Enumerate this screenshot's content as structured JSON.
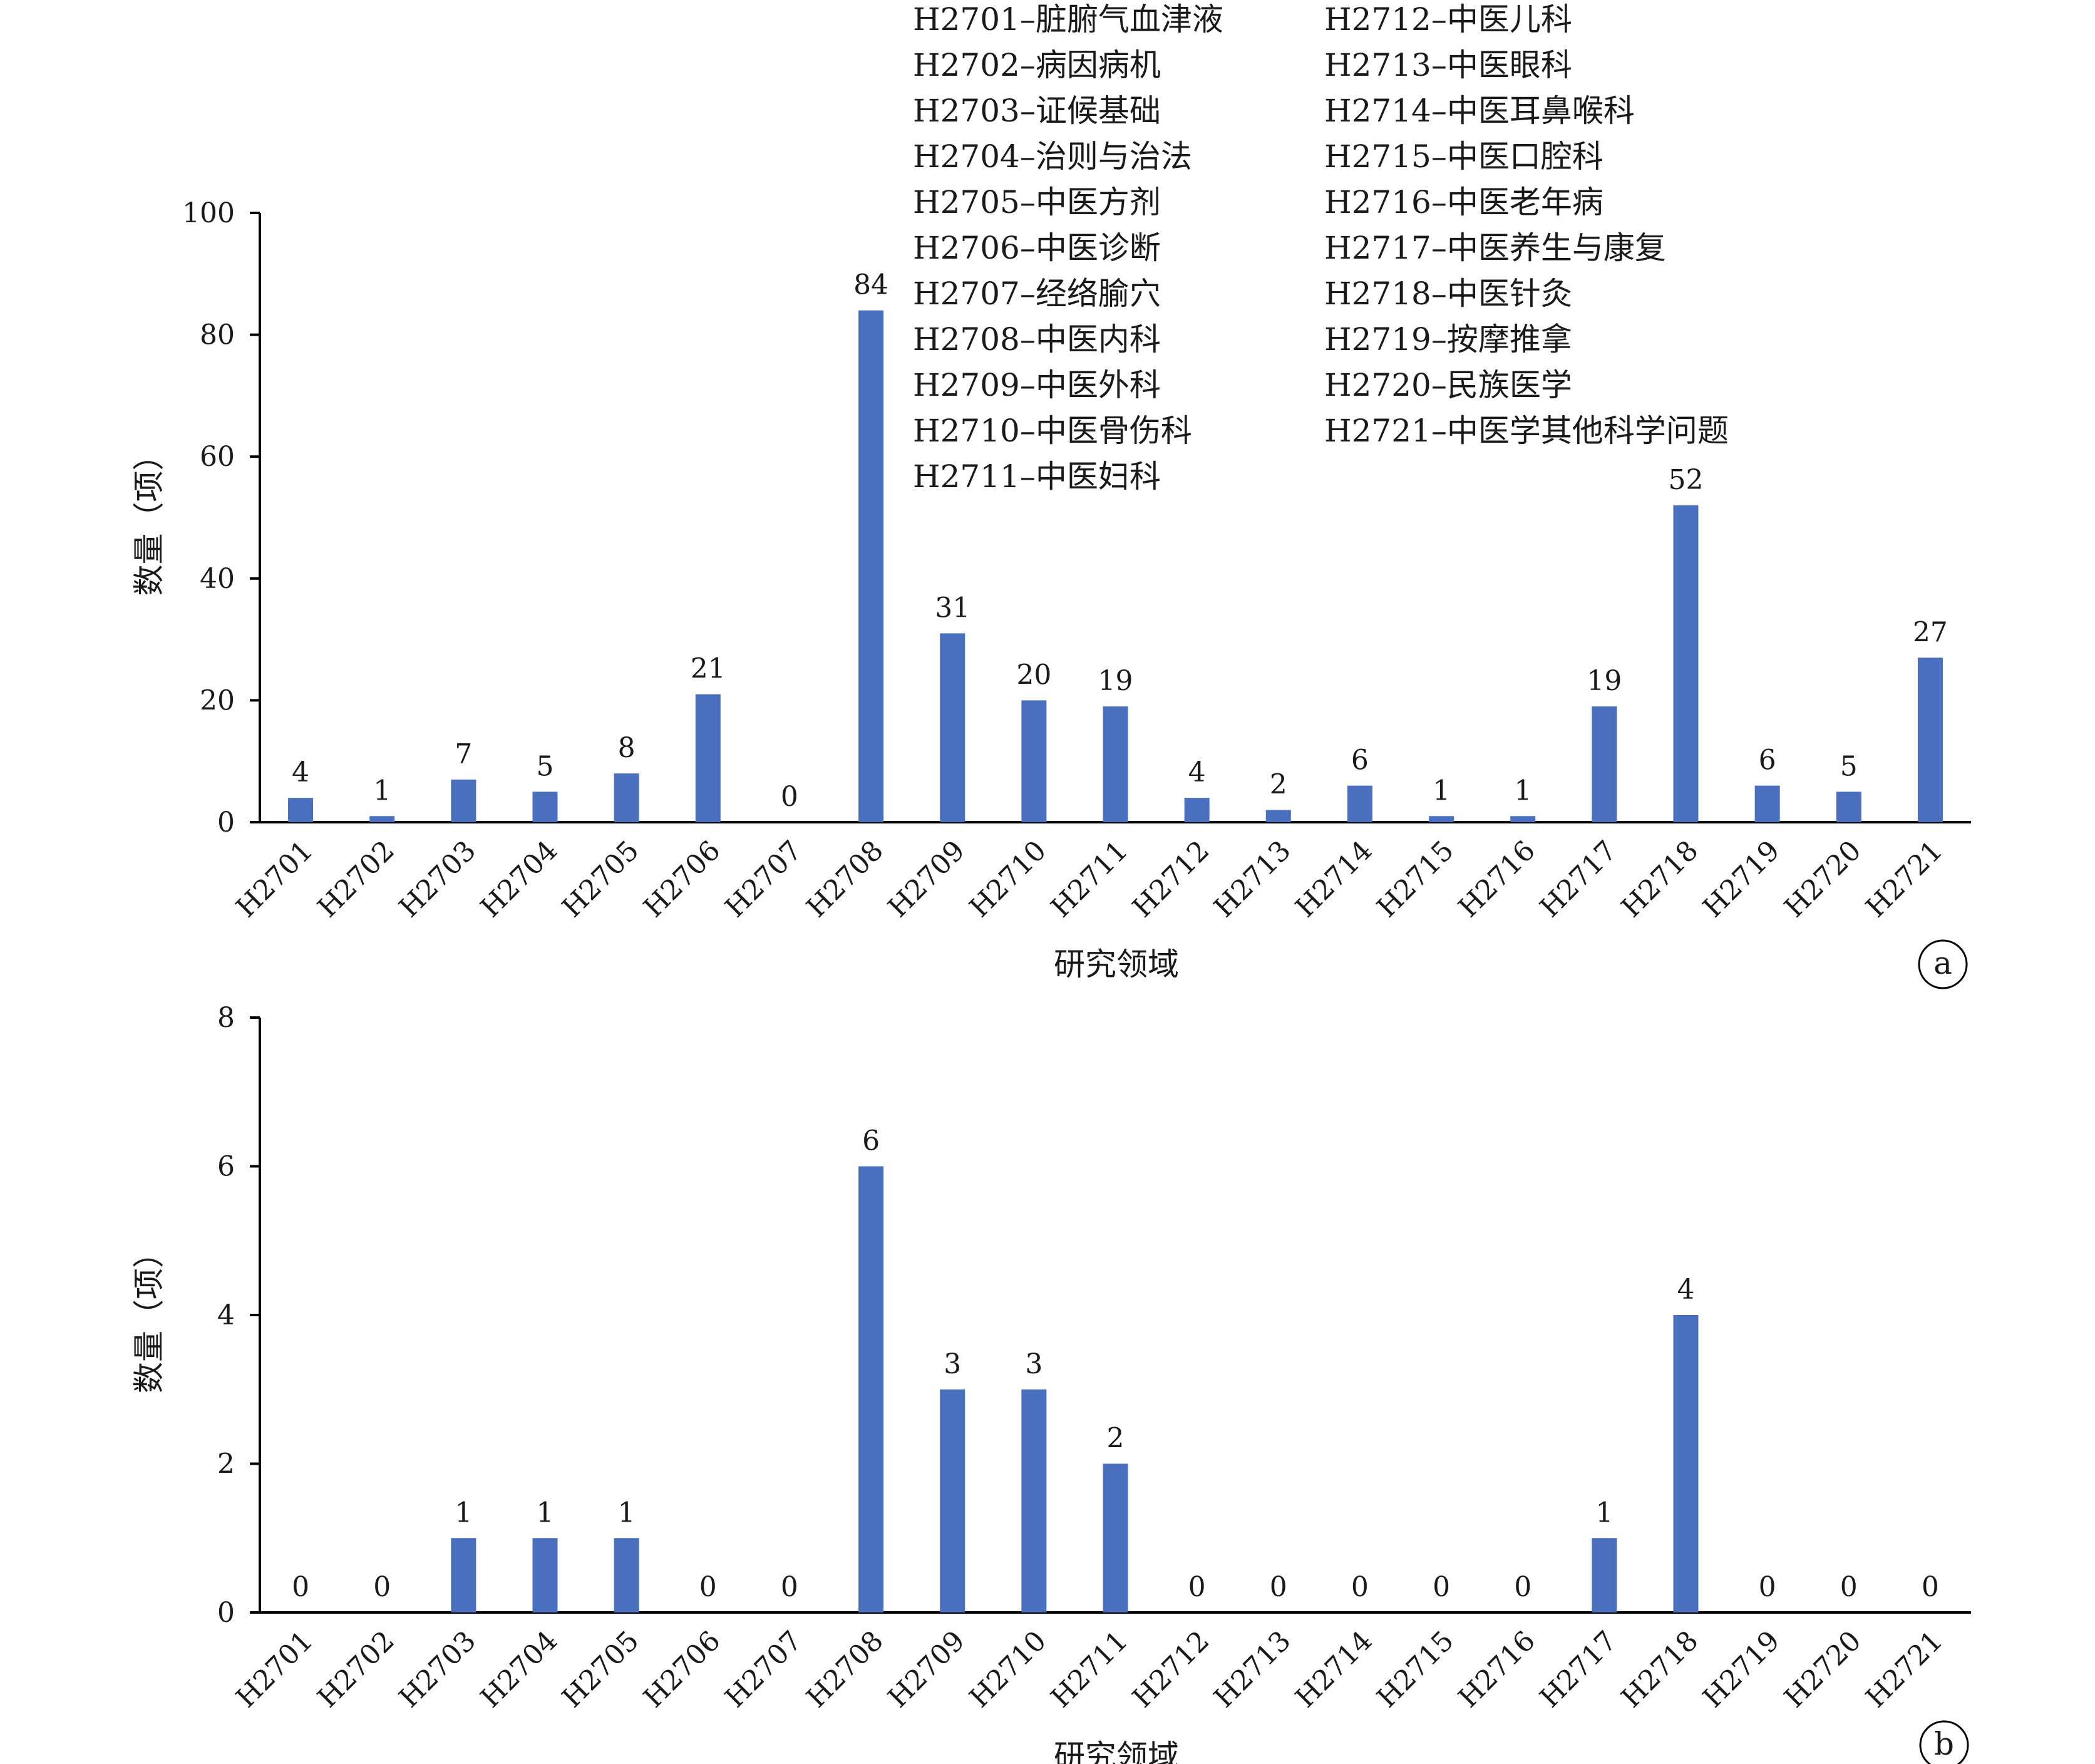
{
  "colors": {
    "bar": "#4a6fbe",
    "axis": "#000000",
    "text": "#1a1a1a"
  },
  "legend": [
    "H2701–脏腑气血津液",
    "H2702–病因病机",
    "H2703–证候基础",
    "H2704–治则与治法",
    "H2705–中医方剂",
    "H2706–中医诊断",
    "H2707–经络腧穴",
    "H2708–中医内科",
    "H2709–中医外科",
    "H2710–中医骨伤科",
    "H2711–中医妇科",
    "H2712–中医儿科",
    "H2713–中医眼科",
    "H2714–中医耳鼻喉科",
    "H2715–中医口腔科",
    "H2716–中医老年病",
    "H2717–中医养生与康复",
    "H2718–中医针灸",
    "H2719–按摩推拿",
    "H2720–民族医学",
    "H2721–中医学其他科学问题"
  ],
  "chart_data": [
    {
      "type": "bar",
      "panel_label": "a",
      "categories": [
        "H2701",
        "H2702",
        "H2703",
        "H2704",
        "H2705",
        "H2706",
        "H2707",
        "H2708",
        "H2709",
        "H2710",
        "H2711",
        "H2712",
        "H2713",
        "H2714",
        "H2715",
        "H2716",
        "H2717",
        "H2718",
        "H2719",
        "H2720",
        "H2721"
      ],
      "values": [
        4,
        1,
        7,
        5,
        8,
        21,
        0,
        84,
        31,
        20,
        19,
        4,
        2,
        6,
        1,
        1,
        19,
        52,
        6,
        5,
        27
      ],
      "xlabel": "研究领域",
      "ylabel": "数量（项）",
      "ylim": [
        0,
        100
      ],
      "yticks": [
        0,
        20,
        40,
        60,
        80,
        100
      ],
      "grid": false
    },
    {
      "type": "bar",
      "panel_label": "b",
      "categories": [
        "H2701",
        "H2702",
        "H2703",
        "H2704",
        "H2705",
        "H2706",
        "H2707",
        "H2708",
        "H2709",
        "H2710",
        "H2711",
        "H2712",
        "H2713",
        "H2714",
        "H2715",
        "H2716",
        "H2717",
        "H2718",
        "H2719",
        "H2720",
        "H2721"
      ],
      "values": [
        0,
        0,
        1,
        1,
        1,
        0,
        0,
        6,
        3,
        3,
        2,
        0,
        0,
        0,
        0,
        0,
        1,
        4,
        0,
        0,
        0
      ],
      "xlabel": "研究领域",
      "ylabel": "数量（项）",
      "ylim": [
        0,
        8
      ],
      "yticks": [
        0,
        2,
        4,
        6,
        8
      ],
      "grid": false
    }
  ]
}
